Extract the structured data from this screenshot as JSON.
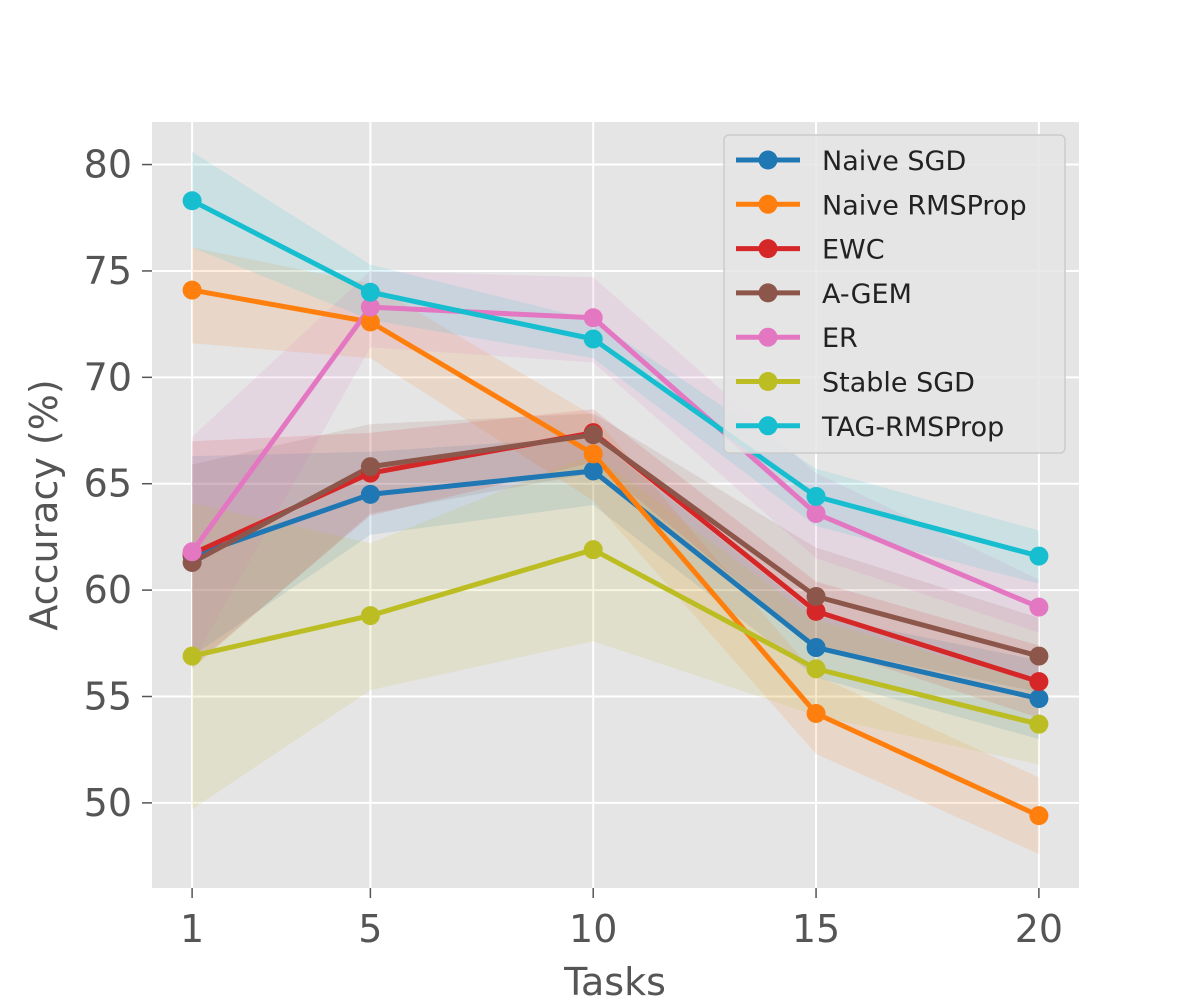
{
  "chart_data": {
    "type": "line",
    "title": "",
    "xlabel": "Tasks",
    "ylabel": "Accuracy (%)",
    "x": [
      1,
      5,
      10,
      15,
      20
    ],
    "xlim": [
      0.1,
      20.9
    ],
    "ylim": [
      46,
      82
    ],
    "yticks": [
      50,
      55,
      60,
      65,
      70,
      75,
      80
    ],
    "grid": true,
    "legend_position": "top-right",
    "series": [
      {
        "name": "Naive SGD",
        "color": "#1f77b4",
        "values": [
          61.6,
          64.5,
          65.6,
          57.3,
          54.9
        ],
        "lower": [
          56.9,
          62.6,
          64.0,
          55.9,
          53.0
        ],
        "upper": [
          66.3,
          66.5,
          67.2,
          58.8,
          56.7
        ]
      },
      {
        "name": "Naive RMSProp",
        "color": "#ff7f0e",
        "values": [
          74.1,
          72.6,
          66.4,
          54.2,
          49.4
        ],
        "lower": [
          71.6,
          70.9,
          64.2,
          52.3,
          47.6
        ],
        "upper": [
          76.1,
          74.4,
          68.2,
          56.0,
          51.2
        ]
      },
      {
        "name": "EWC",
        "color": "#d62728",
        "values": [
          61.7,
          65.5,
          67.4,
          59.0,
          55.7
        ],
        "lower": [
          56.4,
          63.5,
          66.0,
          57.4,
          54.0
        ],
        "upper": [
          67.0,
          67.4,
          68.5,
          60.4,
          57.4
        ]
      },
      {
        "name": "A-GEM",
        "color": "#8c564b",
        "values": [
          61.3,
          65.8,
          67.3,
          59.7,
          56.9
        ],
        "lower": [
          56.3,
          63.6,
          65.5,
          57.4,
          55.2
        ],
        "upper": [
          65.9,
          67.8,
          68.3,
          62.0,
          58.7
        ]
      },
      {
        "name": "ER",
        "color": "#e377c2",
        "values": [
          61.8,
          73.3,
          72.8,
          63.6,
          59.2
        ],
        "lower": [
          56.6,
          71.4,
          70.7,
          61.5,
          58.0
        ],
        "upper": [
          67.2,
          75.0,
          74.7,
          65.5,
          60.5
        ]
      },
      {
        "name": "Stable SGD",
        "color": "#bcbd22",
        "values": [
          56.9,
          58.8,
          61.9,
          56.3,
          53.7
        ],
        "lower": [
          49.7,
          55.3,
          57.6,
          54.1,
          51.8
        ],
        "upper": [
          64.1,
          62.2,
          66.4,
          58.6,
          55.6
        ]
      },
      {
        "name": "TAG-RMSProp",
        "color": "#17becf",
        "values": [
          78.3,
          74.0,
          71.8,
          64.4,
          61.6
        ],
        "lower": [
          76.1,
          72.7,
          70.9,
          63.0,
          60.3
        ],
        "upper": [
          80.6,
          75.3,
          72.7,
          65.7,
          62.8
        ]
      }
    ]
  }
}
